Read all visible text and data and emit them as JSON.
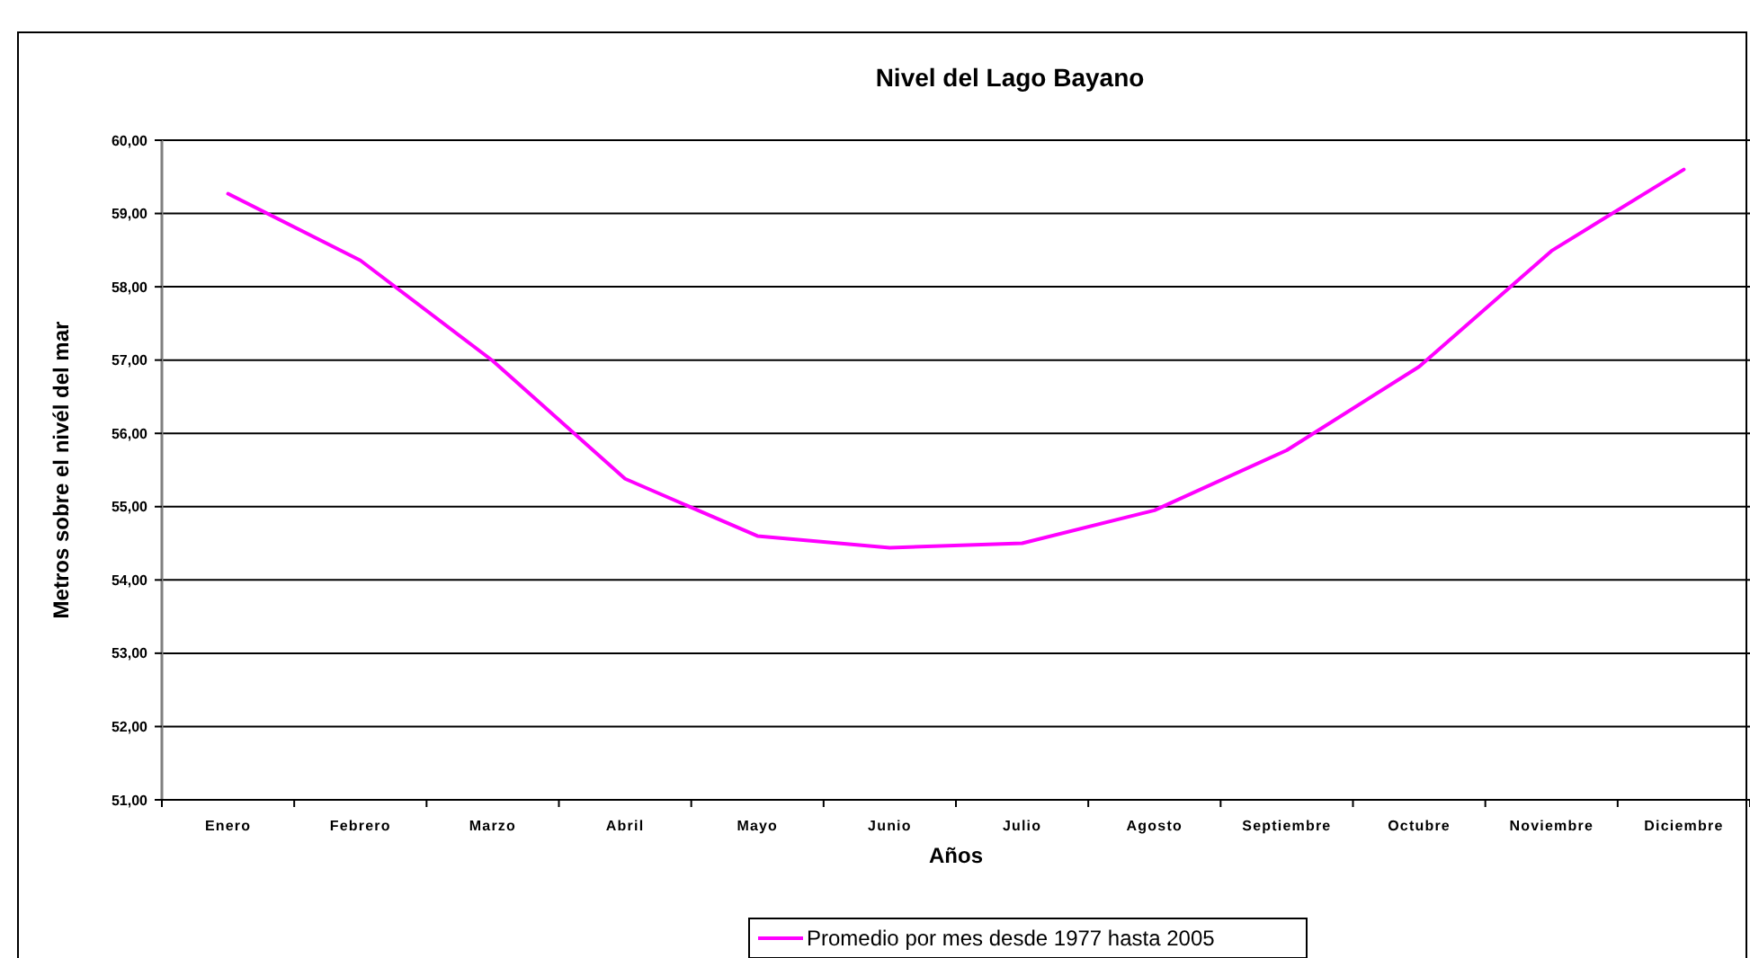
{
  "chart_data": {
    "type": "line",
    "title": "Nivel del Lago Bayano",
    "xlabel": "Años",
    "ylabel": "Metros sobre el nivél del mar",
    "categories": [
      "Enero",
      "Febrero",
      "Marzo",
      "Abril",
      "Mayo",
      "Junio",
      "Julio",
      "Agosto",
      "Septiembre",
      "Octubre",
      "Noviembre",
      "Diciembre"
    ],
    "series": [
      {
        "name": "Promedio por mes desde 1977 hasta 2005",
        "color": "#ff00ff",
        "values": [
          59.27,
          58.36,
          56.99,
          55.38,
          54.6,
          54.44,
          54.5,
          54.95,
          55.77,
          56.91,
          58.49,
          59.6
        ]
      }
    ],
    "ylim": [
      51,
      60
    ],
    "yticks": [
      {
        "value": 51,
        "label": "51,00"
      },
      {
        "value": 52,
        "label": "52,00"
      },
      {
        "value": 53,
        "label": "53,00"
      },
      {
        "value": 54,
        "label": "54,00"
      },
      {
        "value": 55,
        "label": "55,00"
      },
      {
        "value": 56,
        "label": "56,00"
      },
      {
        "value": 57,
        "label": "57,00"
      },
      {
        "value": 58,
        "label": "58,00"
      },
      {
        "value": 59,
        "label": "59,00"
      },
      {
        "value": 60,
        "label": "60,00"
      }
    ],
    "grid": "y",
    "legend": "bottom",
    "marker": "none",
    "line_style": "solid"
  }
}
